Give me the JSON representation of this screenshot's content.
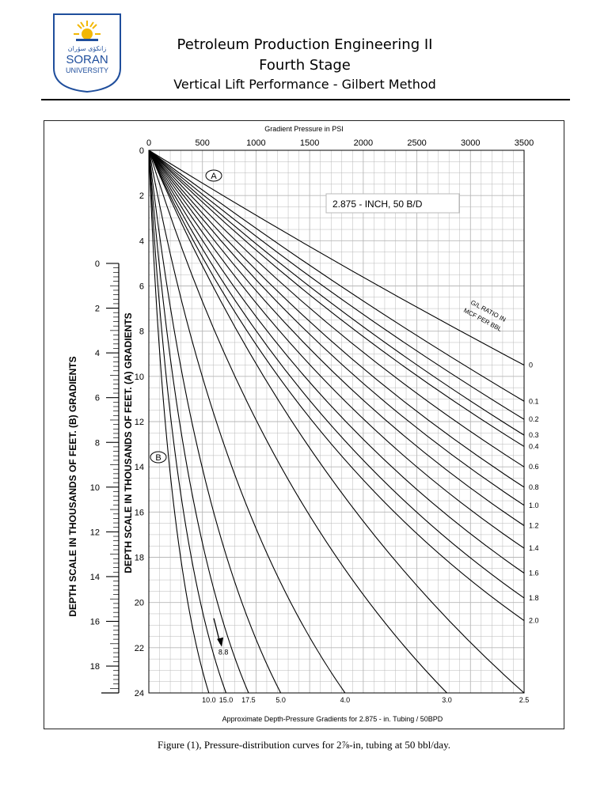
{
  "header": {
    "logo_text_arabic": "زانكۆی سۆران",
    "logo_text_soran": "SORAN",
    "logo_text_university": "UNIVERSITY",
    "title_line1": "Petroleum Production Engineering II",
    "title_line2": "Fourth Stage",
    "title_line3": "Vertical Lift Performance - Gilbert Method"
  },
  "caption": "Figure (1), Pressure-distribution curves for 2⅞-in, tubing at 50 bbl/day.",
  "colors": {
    "ink": "#000000",
    "grid": "#b8b8b8",
    "logo_blue": "#1f4e9c",
    "logo_sun": "#f2b705"
  },
  "chart_data": {
    "type": "line",
    "title": "Gradient Pressure in PSI",
    "subtitle_box": "2.875 - INCH, 50 B/D",
    "footer_label": "Approximate Depth-Pressure Gradients for 2.875 - in. Tubing / 50BPD",
    "legend_title_line1": "G/L RATIO IN",
    "legend_title_line2": "MCF PER BBL",
    "x_ticks": [
      {
        "value": 0,
        "label": "0"
      },
      {
        "value": 500,
        "label": "500"
      },
      {
        "value": 1000,
        "label": "1000"
      },
      {
        "value": 1500,
        "label": "1500"
      },
      {
        "value": 2000,
        "label": "2000"
      },
      {
        "value": 2500,
        "label": "2500"
      },
      {
        "value": 3000,
        "label": "3000"
      },
      {
        "value": 3500,
        "label": "3500"
      }
    ],
    "xlim": [
      0,
      3500
    ],
    "ylim": [
      0,
      24
    ],
    "y_ticks_A": [
      {
        "value": 0,
        "label": "0"
      },
      {
        "value": 2,
        "label": "2"
      },
      {
        "value": 4,
        "label": "4"
      },
      {
        "value": 6,
        "label": "6"
      },
      {
        "value": 8,
        "label": "8"
      },
      {
        "value": 10,
        "label": "10"
      },
      {
        "value": 12,
        "label": "12"
      },
      {
        "value": 14,
        "label": "14"
      },
      {
        "value": 16,
        "label": "16"
      },
      {
        "value": 18,
        "label": "18"
      },
      {
        "value": 20,
        "label": "20"
      },
      {
        "value": 22,
        "label": "22"
      },
      {
        "value": 24,
        "label": "24"
      }
    ],
    "y_label_A": "DEPTH SCALE IN THOUSANDS OF FEET. (A) GRADIENTS",
    "y_ticks_B": [
      {
        "value": 0,
        "label": "0"
      },
      {
        "value": 2,
        "label": "2"
      },
      {
        "value": 4,
        "label": "4"
      },
      {
        "value": 6,
        "label": "6"
      },
      {
        "value": 8,
        "label": "8"
      },
      {
        "value": 10,
        "label": "10"
      },
      {
        "value": 12,
        "label": "12"
      },
      {
        "value": 14,
        "label": "14"
      },
      {
        "value": 16,
        "label": "16"
      },
      {
        "value": 18,
        "label": "18"
      }
    ],
    "ylim_B": [
      0,
      19.2
    ],
    "y_label_B": "DEPTH SCALE IN THOUSANDS OF FEET. (B) GRADIENTS",
    "marker_A": "A",
    "marker_B": "B",
    "grid": true,
    "series_right": [
      {
        "name": "0",
        "end_pressure": 3500,
        "end_depth": 9.5
      },
      {
        "name": "0.1",
        "end_pressure": 3500,
        "end_depth": 11.1
      },
      {
        "name": "0.2",
        "end_pressure": 3500,
        "end_depth": 11.9
      },
      {
        "name": "0.3",
        "end_pressure": 3500,
        "end_depth": 12.6
      },
      {
        "name": "0.4",
        "end_pressure": 3500,
        "end_depth": 13.1
      },
      {
        "name": "0.6",
        "end_pressure": 3500,
        "end_depth": 14.0
      },
      {
        "name": "0.8",
        "end_pressure": 3500,
        "end_depth": 14.9
      },
      {
        "name": "1.0",
        "end_pressure": 3500,
        "end_depth": 15.7
      },
      {
        "name": "1.2",
        "end_pressure": 3500,
        "end_depth": 16.6
      },
      {
        "name": "1.4",
        "end_pressure": 3500,
        "end_depth": 17.6
      },
      {
        "name": "1.6",
        "end_pressure": 3500,
        "end_depth": 18.7
      },
      {
        "name": "1.8",
        "end_pressure": 3500,
        "end_depth": 19.8
      },
      {
        "name": "2.0",
        "end_pressure": 3500,
        "end_depth": 20.8
      }
    ],
    "series_bottom": [
      {
        "name": "2.5",
        "end_pressure": 3500,
        "end_depth": 24
      },
      {
        "name": "3.0",
        "end_pressure": 2780,
        "end_depth": 24
      },
      {
        "name": "4.0",
        "end_pressure": 1830,
        "end_depth": 24
      },
      {
        "name": "5.0",
        "end_pressure": 1230,
        "end_depth": 24
      },
      {
        "name": "17.5",
        "end_pressure": 930,
        "end_depth": 24
      },
      {
        "name": "15.0",
        "end_pressure": 720,
        "end_depth": 24
      },
      {
        "name": "10.0",
        "end_pressure": 560,
        "end_depth": 24
      }
    ],
    "annotation_8_8": {
      "label": "8.8",
      "pressure": 680,
      "depth": 22.1
    }
  }
}
